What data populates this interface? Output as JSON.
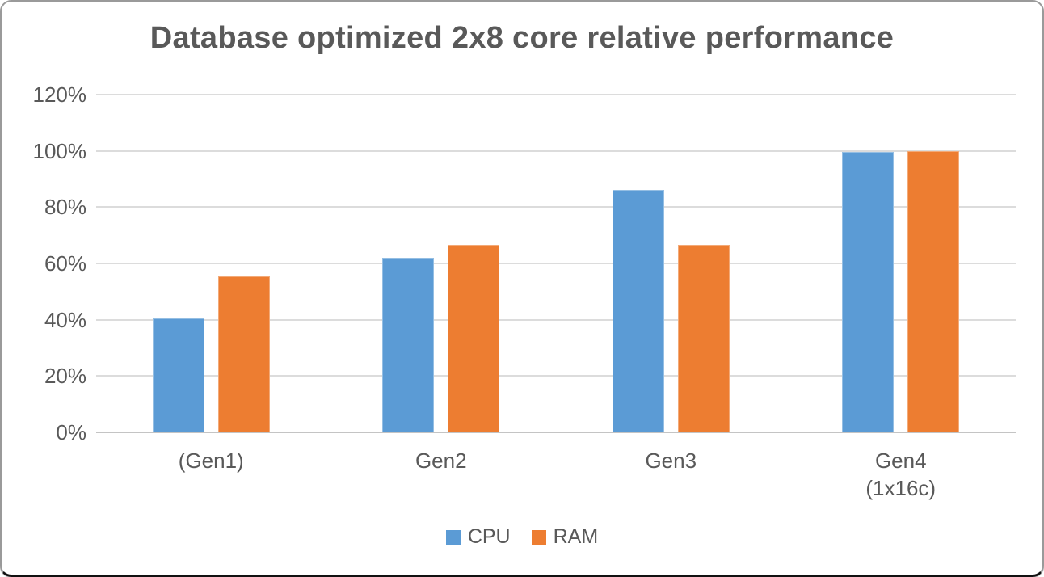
{
  "chart_data": {
    "type": "bar",
    "title": "Database optimized 2x8 core relative performance",
    "categories": [
      "(Gen1)",
      "Gen2",
      "Gen3",
      "Gen4\n(1x16c)"
    ],
    "series": [
      {
        "name": "CPU",
        "color": "#5B9BD5",
        "values": [
          40.5,
          62,
          86,
          99.5
        ]
      },
      {
        "name": "RAM",
        "color": "#ED7D31",
        "values": [
          55.5,
          66.5,
          66.5,
          100
        ]
      }
    ],
    "xlabel": "",
    "ylabel": "",
    "ylim": [
      0,
      120
    ],
    "yticks": [
      "120%",
      "100%",
      "80%",
      "60%",
      "40%",
      "20%",
      "0%"
    ],
    "unit": "%",
    "grid": true,
    "legend_position": "bottom",
    "colors": {
      "text": "#595959",
      "gridline": "#dcdcdc",
      "axis_line": "#c4c4c4",
      "cpu": "#5B9BD5",
      "ram": "#ED7D31"
    }
  }
}
